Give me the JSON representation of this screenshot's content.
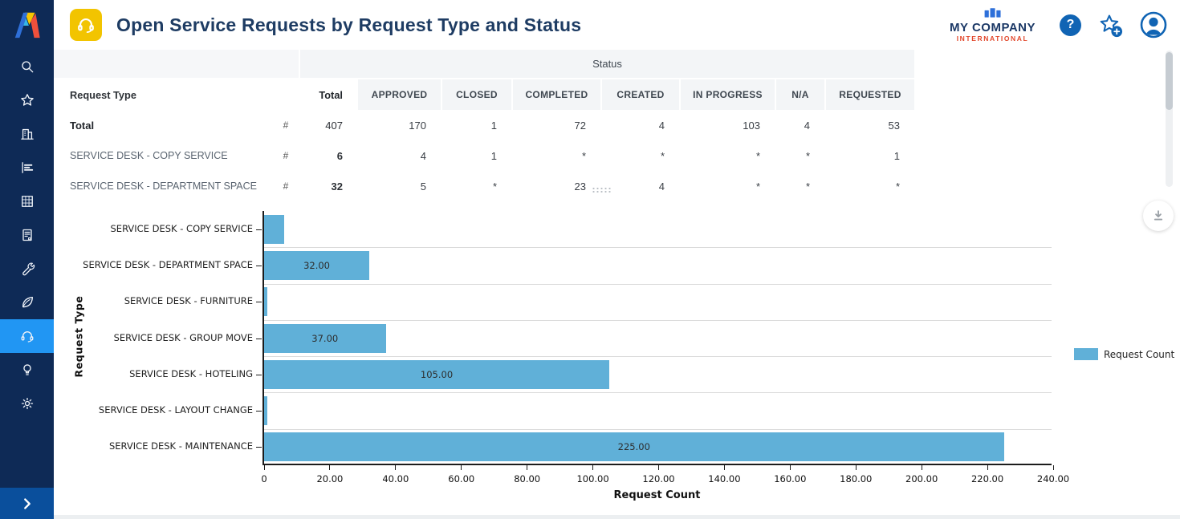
{
  "header": {
    "title": "Open Service Requests by Request Type and Status",
    "company_name": "MY COMPANY",
    "company_subtitle": "INTERNATIONAL",
    "help_glyph": "?"
  },
  "sidebar": {
    "items": [
      {
        "id": "search",
        "icon": "search-icon"
      },
      {
        "id": "favorites",
        "icon": "star-icon"
      },
      {
        "id": "portfolio",
        "icon": "building-icon"
      },
      {
        "id": "reports",
        "icon": "bar-chart-icon"
      },
      {
        "id": "space-planning",
        "icon": "grid-icon"
      },
      {
        "id": "assets",
        "icon": "document-icon"
      },
      {
        "id": "maintenance",
        "icon": "wrench-icon"
      },
      {
        "id": "sustainability",
        "icon": "leaf-icon"
      },
      {
        "id": "service-desk",
        "icon": "headset-icon",
        "active": true
      },
      {
        "id": "insights",
        "icon": "lightbulb-icon"
      },
      {
        "id": "settings",
        "icon": "gear-icon"
      }
    ]
  },
  "table": {
    "group_header": "Status",
    "request_type_header": "Request Type",
    "total_header": "Total",
    "hash_symbol": "#",
    "status_columns": [
      "APPROVED",
      "CLOSED",
      "COMPLETED",
      "CREATED",
      "IN PROGRESS",
      "N/A",
      "REQUESTED"
    ],
    "rows": [
      {
        "label": "Total",
        "total": "407",
        "values": [
          "170",
          "1",
          "72",
          "4",
          "103",
          "4",
          "53"
        ],
        "bold_label": true,
        "bold_total": false
      },
      {
        "label": "SERVICE DESK - COPY SERVICE",
        "total": "6",
        "values": [
          "4",
          "1",
          "*",
          "*",
          "*",
          "*",
          "1"
        ],
        "bold_label": false,
        "bold_total": true
      },
      {
        "label": "SERVICE DESK - DEPARTMENT SPACE",
        "total": "32",
        "values": [
          "5",
          "*",
          "23",
          "4",
          "*",
          "*",
          "*"
        ],
        "bold_label": false,
        "bold_total": true
      }
    ]
  },
  "chart_data": {
    "type": "bar",
    "orientation": "horizontal",
    "categories": [
      "SERVICE DESK - COPY SERVICE",
      "SERVICE DESK - DEPARTMENT SPACE",
      "SERVICE DESK - FURNITURE",
      "SERVICE DESK - GROUP MOVE",
      "SERVICE DESK - HOTELING",
      "SERVICE DESK - LAYOUT CHANGE",
      "SERVICE DESK - MAINTENANCE"
    ],
    "values": [
      6,
      32,
      1,
      37,
      105,
      1,
      225
    ],
    "bar_labels": [
      "",
      "32.00",
      "",
      "37.00",
      "105.00",
      "",
      "225.00"
    ],
    "xlabel": "Request Count",
    "ylabel": "Request Type",
    "xlim": [
      0,
      240
    ],
    "xticks": [
      "0",
      "20.00",
      "40.00",
      "60.00",
      "80.00",
      "100.00",
      "120.00",
      "140.00",
      "160.00",
      "180.00",
      "200.00",
      "220.00",
      "240.00"
    ],
    "grid": "horizontal band separators",
    "legend": {
      "position": "right",
      "items": [
        {
          "label": "Request Count",
          "color": "#60b0d8"
        }
      ]
    },
    "bar_color": "#60b0d8"
  },
  "colors": {
    "sidebar_bg": "#0e2a56",
    "sidebar_active": "#2196f3",
    "sidebar_expand": "#0a4f9c",
    "title_text": "#1e3c63",
    "app_icon_bg": "#f2c400",
    "header_icon_blue": "#1064b4",
    "company_text": "#1b3866",
    "company_subtitle_text": "#e2482c",
    "table_header_bg": "#f3f5f7",
    "bar_color": "#60b0d8"
  }
}
